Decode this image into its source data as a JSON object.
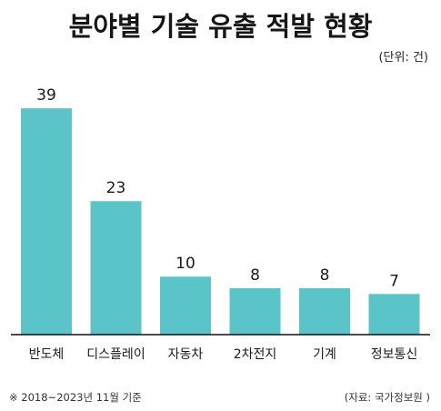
{
  "title": "분야별 기술 유출 적발 현황",
  "unit": "(단위: 건)",
  "footnote": "※ 2018~2023년 11월 기준",
  "source": "(자료: 국가정보원 )",
  "colors": {
    "bar": "#5bc4c9",
    "axis": "#111111"
  },
  "chart_data": {
    "type": "bar",
    "title": "분야별 기술 유출 적발 현황",
    "categories": [
      "반도체",
      "디스플레이",
      "자동차",
      "2차전지",
      "기계",
      "정보통신"
    ],
    "values": [
      39,
      23,
      10,
      8,
      8,
      7
    ],
    "ylim": [
      0,
      42
    ],
    "grid": false,
    "data_labels": true
  }
}
